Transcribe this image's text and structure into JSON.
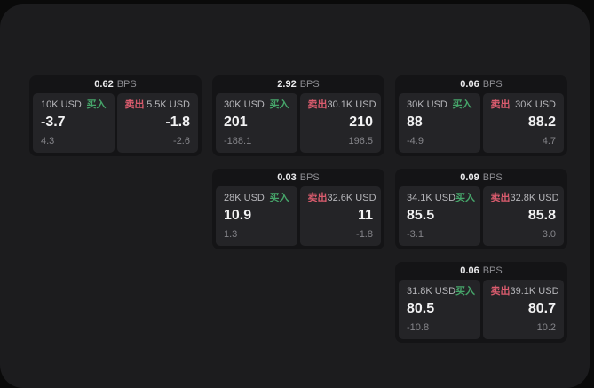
{
  "labels": {
    "bps": "BPS",
    "buy": "买入",
    "sell": "卖出"
  },
  "colors": {
    "buy": "#46a56a",
    "sell": "#da5c6e",
    "panel_bg": "#1c1c1e",
    "card_bg": "#141416",
    "quote_bg": "#242427"
  },
  "cards": [
    {
      "row": 1,
      "col": 1,
      "bps": "0.62",
      "buy": {
        "amount": "10K USD",
        "value": "-3.7",
        "sub": "4.3"
      },
      "sell": {
        "amount": "5.5K USD",
        "value": "-1.8",
        "sub": "-2.6"
      }
    },
    {
      "row": 1,
      "col": 2,
      "bps": "2.92",
      "buy": {
        "amount": "30K USD",
        "value": "201",
        "sub": "-188.1"
      },
      "sell": {
        "amount": "30.1K USD",
        "value": "210",
        "sub": "196.5"
      }
    },
    {
      "row": 1,
      "col": 3,
      "bps": "0.06",
      "buy": {
        "amount": "30K USD",
        "value": "88",
        "sub": "-4.9"
      },
      "sell": {
        "amount": "30K USD",
        "value": "88.2",
        "sub": "4.7"
      }
    },
    {
      "row": 2,
      "col": 2,
      "bps": "0.03",
      "buy": {
        "amount": "28K USD",
        "value": "10.9",
        "sub": "1.3"
      },
      "sell": {
        "amount": "32.6K USD",
        "value": "11",
        "sub": "-1.8"
      }
    },
    {
      "row": 2,
      "col": 3,
      "bps": "0.09",
      "buy": {
        "amount": "34.1K USD",
        "value": "85.5",
        "sub": "-3.1"
      },
      "sell": {
        "amount": "32.8K USD",
        "value": "85.8",
        "sub": "3.0"
      }
    },
    {
      "row": 3,
      "col": 3,
      "bps": "0.06",
      "buy": {
        "amount": "31.8K USD",
        "value": "80.5",
        "sub": "-10.8"
      },
      "sell": {
        "amount": "39.1K USD",
        "value": "80.7",
        "sub": "10.2"
      }
    }
  ]
}
